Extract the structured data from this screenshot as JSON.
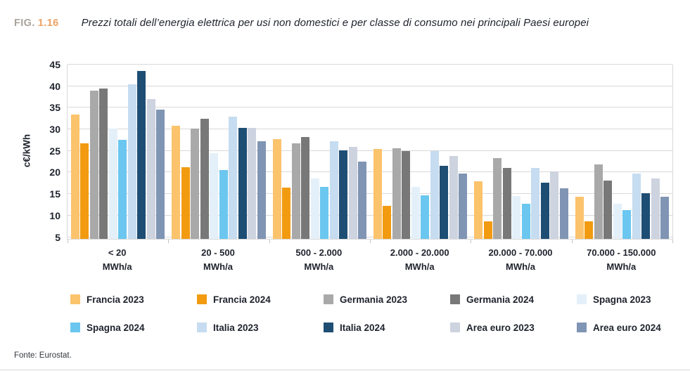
{
  "figure": {
    "label_prefix": "FIG.",
    "label_number": "1.16",
    "title": "Prezzi totali dell’energia elettrica per usi non domestici e per classe di consumo nei principali Paesi europei"
  },
  "footer": {
    "source": "Fonte: Eurostat."
  },
  "chart_data": {
    "type": "bar",
    "title": "Prezzi totali dell’energia elettrica per usi non domestici e per classe di consumo nei principali Paesi europei",
    "xlabel": "",
    "ylabel": "c€/kWh",
    "ylim": [
      5,
      45
    ],
    "ytick_step": 5,
    "grid": true,
    "legend_position": "bottom",
    "grid_color": "#d9d9d9",
    "categories": [
      "< 20",
      "20 - 500",
      "500 - 2.000",
      "2.000 - 20.000",
      "20.000 - 70.000",
      "70.000 - 150.000"
    ],
    "category_unit": "MWh/a",
    "series": [
      {
        "name": "Francia 2023",
        "color": "#FBC36C",
        "values": [
          33.5,
          30.8,
          27.7,
          25.5,
          17.9,
          14.4
        ]
      },
      {
        "name": "Francia 2024",
        "color": "#F29B11",
        "values": [
          26.8,
          21.2,
          16.5,
          12.2,
          8.6,
          8.6
        ]
      },
      {
        "name": "Germania 2023",
        "color": "#A9A9A9",
        "values": [
          39.0,
          30.1,
          26.8,
          25.6,
          23.4,
          21.9
        ]
      },
      {
        "name": "Germania 2024",
        "color": "#787878",
        "values": [
          39.4,
          32.5,
          28.2,
          25.0,
          21.1,
          18.2
        ]
      },
      {
        "name": "Spagna 2023",
        "color": "#E4F0F9",
        "values": [
          30.2,
          24.4,
          18.6,
          16.7,
          14.6,
          12.8
        ]
      },
      {
        "name": "Spagna 2024",
        "color": "#6BC7EF",
        "values": [
          27.6,
          20.6,
          16.6,
          14.7,
          12.7,
          11.3
        ]
      },
      {
        "name": "Italia 2023",
        "color": "#C6DCF0",
        "values": [
          40.5,
          33.0,
          27.3,
          24.9,
          21.0,
          19.7
        ]
      },
      {
        "name": "Italia 2024",
        "color": "#1F4E74",
        "values": [
          43.6,
          30.4,
          25.2,
          21.5,
          17.7,
          15.2
        ]
      },
      {
        "name": "Area euro 2023",
        "color": "#CDD3DF",
        "values": [
          37.1,
          30.3,
          25.9,
          23.9,
          20.3,
          18.6
        ]
      },
      {
        "name": "Area euro 2024",
        "color": "#8095B4",
        "values": [
          34.6,
          27.3,
          22.6,
          19.8,
          16.4,
          14.4
        ]
      }
    ]
  }
}
